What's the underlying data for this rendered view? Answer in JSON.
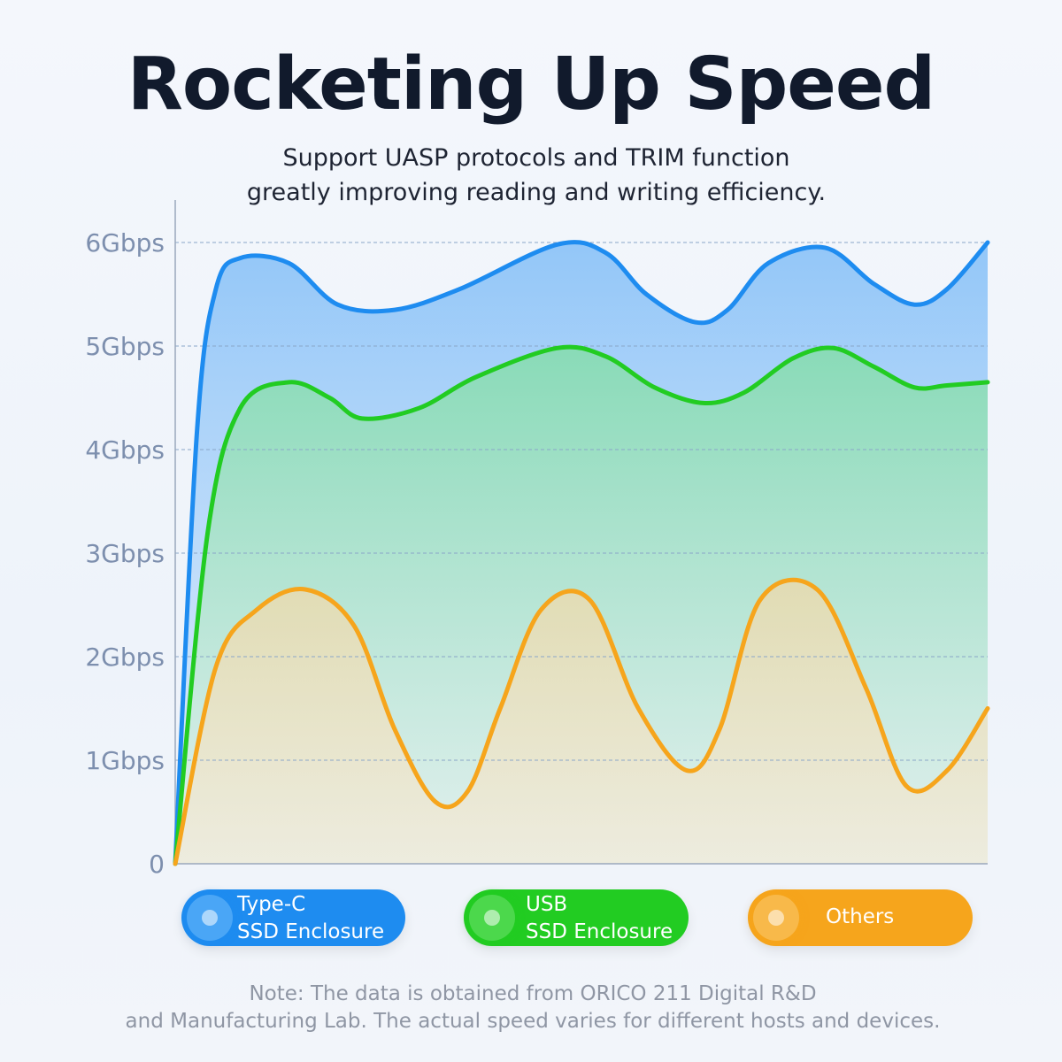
{
  "header": {
    "title": "Rocketing Up Speed",
    "subtitle_line1": "Support UASP protocols and TRIM function",
    "subtitle_line2": "greatly improving reading and writing efficiency."
  },
  "chart_data": {
    "type": "area",
    "y_ticks": [
      "0",
      "1Gbps",
      "2Gbps",
      "3Gbps",
      "4Gbps",
      "5Gbps",
      "6Gbps"
    ],
    "ylim": [
      0,
      6
    ],
    "grid": true,
    "legend_position": "bottom",
    "series": [
      {
        "name": "Type-C SSD Enclosure",
        "color": "#1e8cf0",
        "values": [
          [
            0,
            0
          ],
          [
            2.7,
            4.2
          ],
          [
            5,
            5.55
          ],
          [
            8,
            5.85
          ],
          [
            14,
            5.8
          ],
          [
            20,
            5.4
          ],
          [
            27,
            5.35
          ],
          [
            35,
            5.55
          ],
          [
            47,
            5.98
          ],
          [
            53,
            5.9
          ],
          [
            58,
            5.5
          ],
          [
            64,
            5.23
          ],
          [
            68,
            5.35
          ],
          [
            73,
            5.8
          ],
          [
            80,
            5.95
          ],
          [
            86,
            5.6
          ],
          [
            91,
            5.4
          ],
          [
            95,
            5.55
          ],
          [
            100,
            6.0
          ]
        ]
      },
      {
        "name": "USB SSD Enclosure",
        "color": "#22cc22",
        "values": [
          [
            0,
            0
          ],
          [
            4,
            3.2
          ],
          [
            8,
            4.4
          ],
          [
            14,
            4.65
          ],
          [
            19,
            4.5
          ],
          [
            23,
            4.3
          ],
          [
            30,
            4.4
          ],
          [
            37,
            4.7
          ],
          [
            47,
            4.98
          ],
          [
            53,
            4.9
          ],
          [
            59,
            4.6
          ],
          [
            65,
            4.45
          ],
          [
            70,
            4.55
          ],
          [
            76,
            4.88
          ],
          [
            81,
            4.98
          ],
          [
            86,
            4.8
          ],
          [
            91,
            4.6
          ],
          [
            95,
            4.62
          ],
          [
            100,
            4.65
          ]
        ]
      },
      {
        "name": "Others",
        "color": "#f6a51c",
        "values": [
          [
            0,
            0
          ],
          [
            5,
            1.9
          ],
          [
            10,
            2.45
          ],
          [
            16,
            2.65
          ],
          [
            22,
            2.3
          ],
          [
            27,
            1.3
          ],
          [
            32,
            0.6
          ],
          [
            36,
            0.7
          ],
          [
            40,
            1.5
          ],
          [
            45,
            2.45
          ],
          [
            51,
            2.55
          ],
          [
            57,
            1.5
          ],
          [
            63,
            0.9
          ],
          [
            67,
            1.3
          ],
          [
            72,
            2.55
          ],
          [
            79,
            2.65
          ],
          [
            85,
            1.7
          ],
          [
            90,
            0.75
          ],
          [
            95,
            0.9
          ],
          [
            100,
            1.5
          ]
        ]
      }
    ]
  },
  "legend": {
    "typec_line1": "Type-C",
    "typec_line2": "SSD Enclosure",
    "usb_line1": "USB",
    "usb_line2": "SSD Enclosure",
    "others": "Others"
  },
  "note": {
    "line1": "Note: The data is obtained from ORICO 211 Digital R&D",
    "line2": "and Manufacturing Lab. The actual speed varies for different hosts and devices."
  }
}
